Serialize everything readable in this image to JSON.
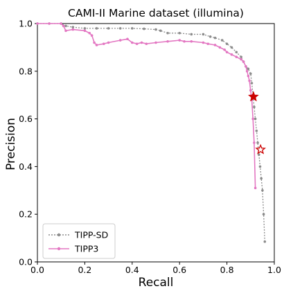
{
  "chart_data": {
    "type": "line",
    "title": "CAMI-II Marine dataset (illumina)",
    "xlabel": "Recall",
    "ylabel": "Precision",
    "xlim": [
      0.0,
      1.0
    ],
    "ylim": [
      0.0,
      1.0
    ],
    "xticks": [
      "0.0",
      "0.2",
      "0.4",
      "0.6",
      "0.8",
      "1.0"
    ],
    "yticks": [
      "0.0",
      "0.2",
      "0.4",
      "0.6",
      "0.8",
      "1.0"
    ],
    "grid": false,
    "legend_position": "lower-left",
    "series": [
      {
        "name": "TIPP-SD",
        "color": "#8c8c8c",
        "linestyle": "dotted",
        "marker": "dot",
        "x": [
          0.0,
          0.05,
          0.1,
          0.12,
          0.15,
          0.2,
          0.25,
          0.3,
          0.35,
          0.4,
          0.45,
          0.5,
          0.52,
          0.55,
          0.6,
          0.65,
          0.7,
          0.73,
          0.75,
          0.78,
          0.8,
          0.82,
          0.84,
          0.86,
          0.87,
          0.88,
          0.89,
          0.9,
          0.905,
          0.91,
          0.915,
          0.92,
          0.925,
          0.93,
          0.935,
          0.94,
          0.945,
          0.95,
          0.955,
          0.96
        ],
        "y": [
          1.0,
          1.0,
          1.0,
          0.99,
          0.985,
          0.98,
          0.98,
          0.98,
          0.98,
          0.98,
          0.978,
          0.975,
          0.97,
          0.96,
          0.96,
          0.955,
          0.955,
          0.945,
          0.94,
          0.93,
          0.915,
          0.9,
          0.88,
          0.86,
          0.84,
          0.82,
          0.81,
          0.79,
          0.75,
          0.7,
          0.65,
          0.6,
          0.55,
          0.5,
          0.45,
          0.4,
          0.35,
          0.3,
          0.2,
          0.085
        ]
      },
      {
        "name": "TIPP3",
        "color": "#e377c2",
        "linestyle": "solid",
        "marker": "dot",
        "x": [
          0.0,
          0.05,
          0.1,
          0.11,
          0.12,
          0.15,
          0.2,
          0.22,
          0.23,
          0.24,
          0.25,
          0.28,
          0.3,
          0.35,
          0.38,
          0.4,
          0.42,
          0.44,
          0.46,
          0.5,
          0.55,
          0.6,
          0.62,
          0.65,
          0.7,
          0.72,
          0.75,
          0.77,
          0.79,
          0.8,
          0.82,
          0.84,
          0.86,
          0.87,
          0.88,
          0.885,
          0.89,
          0.895,
          0.9,
          0.905,
          0.91,
          0.915,
          0.92
        ],
        "y": [
          1.0,
          1.0,
          1.0,
          0.99,
          0.97,
          0.975,
          0.97,
          0.96,
          0.95,
          0.92,
          0.91,
          0.915,
          0.92,
          0.93,
          0.935,
          0.92,
          0.915,
          0.92,
          0.915,
          0.92,
          0.925,
          0.93,
          0.925,
          0.925,
          0.92,
          0.915,
          0.91,
          0.9,
          0.89,
          0.88,
          0.87,
          0.86,
          0.85,
          0.84,
          0.82,
          0.8,
          0.78,
          0.76,
          0.72,
          0.68,
          0.6,
          0.5,
          0.31
        ]
      }
    ],
    "stars": [
      {
        "series": "TIPP3",
        "x": 0.912,
        "y": 0.693,
        "style": "filled",
        "color": "#cc0000"
      },
      {
        "series": "TIPP-SD",
        "x": 0.942,
        "y": 0.471,
        "style": "hollow",
        "color": "#cc0000"
      }
    ]
  }
}
